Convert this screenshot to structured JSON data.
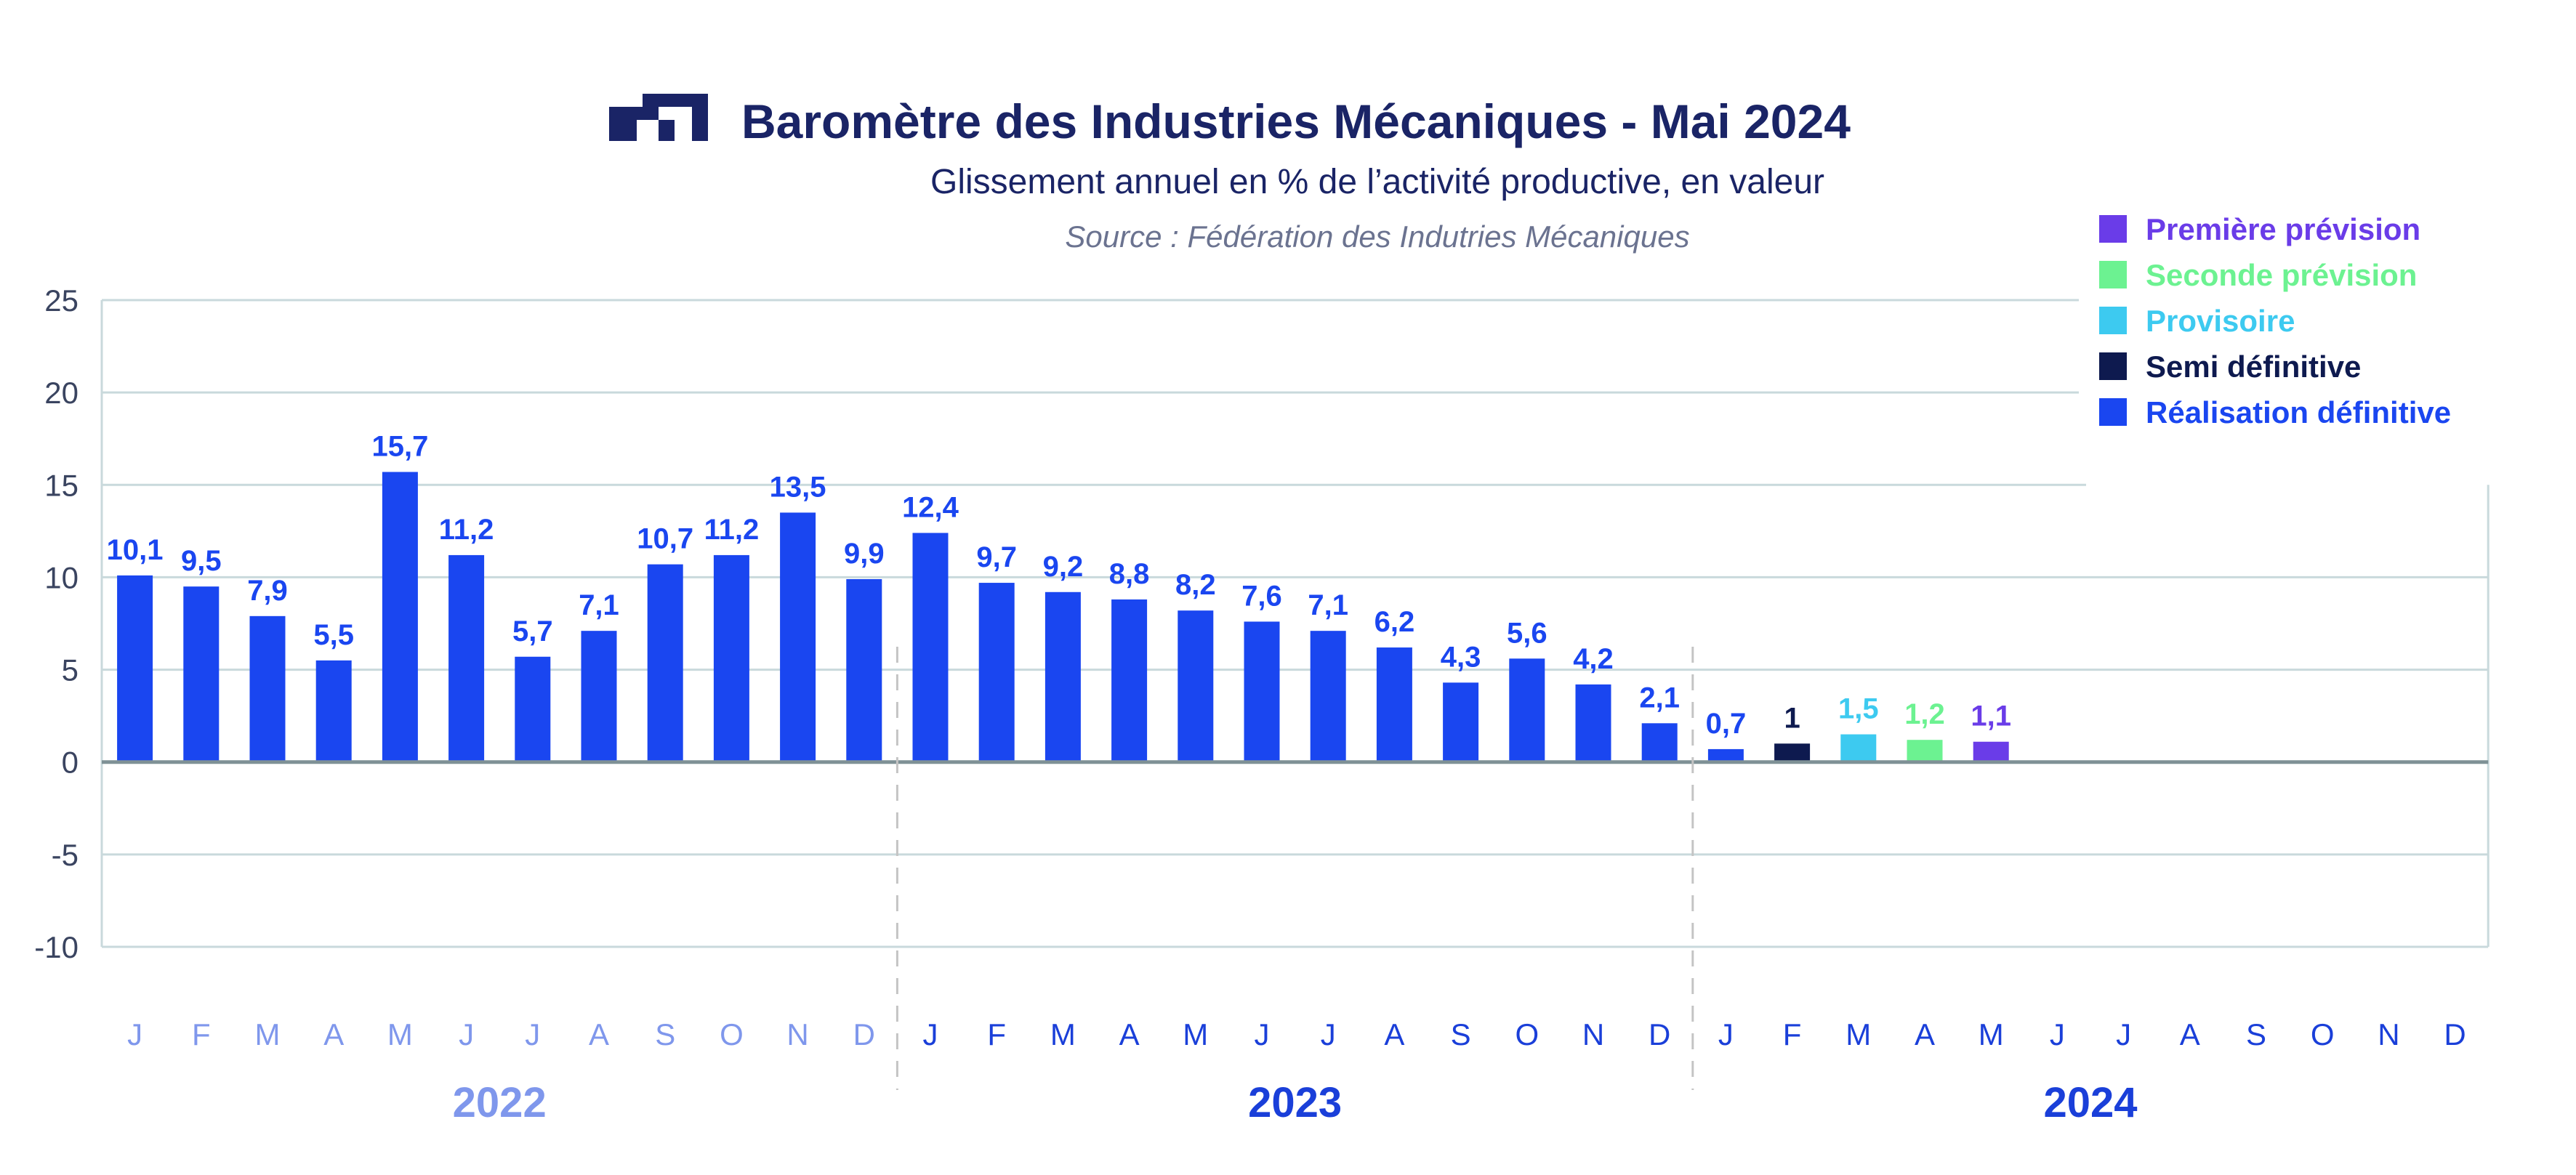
{
  "header": {
    "title": "Baromètre des Industries Mécaniques - Mai 2024",
    "subtitle": "Glissement annuel en % de l’activité productive, en valeur",
    "source": "Source : Fédération des Indutries Mécaniques",
    "logo_icon": "fim-logo-icon"
  },
  "colors": {
    "title": "#1a2466",
    "source": "#6b7390",
    "axis_text": "#3a4460",
    "grid": "#c9d9dc",
    "zero_line": "#7f9196",
    "divider": "#c4c4c4",
    "year_2022": "#7f97ec",
    "year_2023": "#1a3fd9",
    "year_2024": "#1a3fd9"
  },
  "legend": [
    {
      "label": "Première prévision",
      "color": "#6a3ce8"
    },
    {
      "label": "Seconde prévision",
      "color": "#6cf291"
    },
    {
      "label": "Provisoire",
      "color": "#3dcaf0"
    },
    {
      "label": "Semi définitive",
      "color": "#0e1a4f"
    },
    {
      "label": "Réalisation définitive",
      "color": "#1a46f0"
    }
  ],
  "chart_data": {
    "type": "bar",
    "title": "Baromètre des Industries Mécaniques - Mai 2024",
    "subtitle": "Glissement annuel en % de l’activité productive, en valeur",
    "ylim": [
      -10,
      25
    ],
    "yticks": [
      25,
      20,
      15,
      10,
      5,
      0,
      -5,
      -10
    ],
    "grid": true,
    "legend_position": "top-right",
    "years": [
      {
        "label": "2022",
        "months": 12
      },
      {
        "label": "2023",
        "months": 12
      },
      {
        "label": "2024",
        "months": 12
      }
    ],
    "categories": [
      "J",
      "F",
      "M",
      "A",
      "M",
      "J",
      "J",
      "A",
      "S",
      "O",
      "N",
      "D",
      "J",
      "F",
      "M",
      "A",
      "M",
      "J",
      "J",
      "A",
      "S",
      "O",
      "N",
      "D",
      "J",
      "F",
      "M",
      "A",
      "M",
      "J",
      "J",
      "A",
      "S",
      "O",
      "N",
      "D"
    ],
    "values": [
      10.1,
      9.5,
      7.9,
      5.5,
      15.7,
      11.2,
      5.7,
      7.1,
      10.7,
      11.2,
      13.5,
      9.9,
      12.4,
      9.7,
      9.2,
      8.8,
      8.2,
      7.6,
      7.1,
      6.2,
      4.3,
      5.6,
      4.2,
      2.1,
      0.7,
      1,
      1.5,
      1.2,
      1.1,
      null,
      null,
      null,
      null,
      null,
      null,
      null
    ],
    "labels": [
      "10,1",
      "9,5",
      "7,9",
      "5,5",
      "15,7",
      "11,2",
      "5,7",
      "7,1",
      "10,7",
      "11,2",
      "13,5",
      "9,9",
      "12,4",
      "9,7",
      "9,2",
      "8,8",
      "8,2",
      "7,6",
      "7,1",
      "6,2",
      "4,3",
      "5,6",
      "4,2",
      "2,1",
      "0,7",
      "1",
      "1,5",
      "1,2",
      "1,1",
      "",
      "",
      "",
      "",
      "",
      "",
      ""
    ],
    "status": [
      "Réalisation définitive",
      "Réalisation définitive",
      "Réalisation définitive",
      "Réalisation définitive",
      "Réalisation définitive",
      "Réalisation définitive",
      "Réalisation définitive",
      "Réalisation définitive",
      "Réalisation définitive",
      "Réalisation définitive",
      "Réalisation définitive",
      "Réalisation définitive",
      "Réalisation définitive",
      "Réalisation définitive",
      "Réalisation définitive",
      "Réalisation définitive",
      "Réalisation définitive",
      "Réalisation définitive",
      "Réalisation définitive",
      "Réalisation définitive",
      "Réalisation définitive",
      "Réalisation définitive",
      "Réalisation définitive",
      "Réalisation définitive",
      "Réalisation définitive",
      "Semi définitive",
      "Provisoire",
      "Seconde prévision",
      "Première prévision",
      null,
      null,
      null,
      null,
      null,
      null,
      null
    ]
  }
}
